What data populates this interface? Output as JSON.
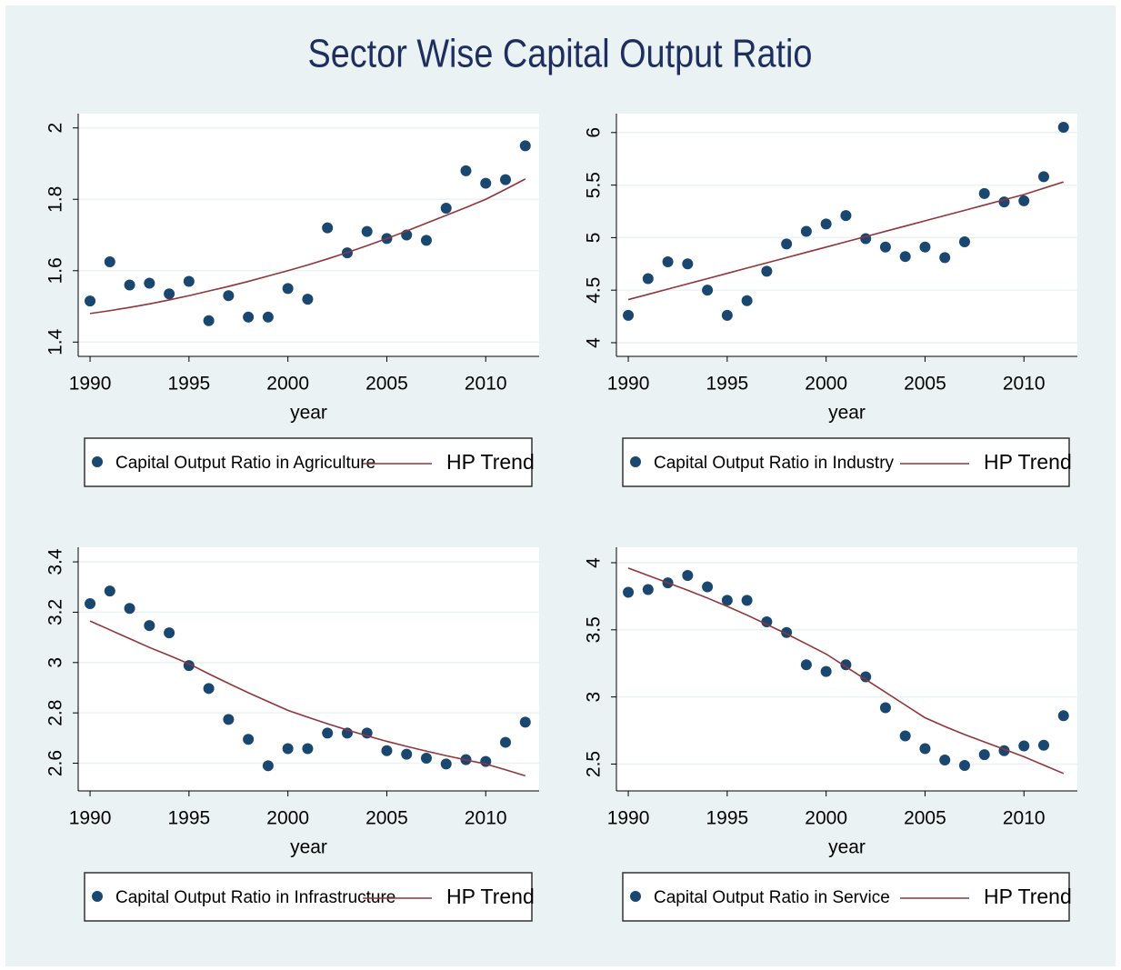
{
  "title": "Sector Wise Capital Output Ratio",
  "chart_data": [
    {
      "type": "scatter",
      "xlabel": "year",
      "x": [
        1990,
        1991,
        1992,
        1993,
        1994,
        1995,
        1996,
        1997,
        1998,
        1999,
        2000,
        2001,
        2002,
        2003,
        2004,
        2005,
        2006,
        2007,
        2008,
        2009,
        2010,
        2011,
        2012
      ],
      "series": [
        {
          "name": "Capital Output Ratio in Agriculture",
          "type": "scatter",
          "color": "#1a476f",
          "values": [
            1.515,
            1.625,
            1.56,
            1.565,
            1.535,
            1.57,
            1.46,
            1.53,
            1.47,
            1.47,
            1.55,
            1.52,
            1.72,
            1.65,
            1.71,
            1.69,
            1.7,
            1.685,
            1.775,
            1.88,
            1.845,
            1.855,
            1.95
          ]
        },
        {
          "name": "HP Trend",
          "type": "line",
          "color": "#90353b",
          "values": [
            1.48,
            1.488,
            1.497,
            1.507,
            1.518,
            1.53,
            1.543,
            1.556,
            1.57,
            1.585,
            1.6,
            1.616,
            1.633,
            1.651,
            1.67,
            1.69,
            1.711,
            1.733,
            1.755,
            1.777,
            1.8,
            1.828,
            1.857
          ]
        }
      ],
      "xlim": [
        1989.4,
        2012.7
      ],
      "xticks": [
        1990,
        1995,
        2000,
        2005,
        2010
      ],
      "ylim": [
        1.36,
        2.04
      ],
      "yticks": [
        1.4,
        1.6,
        1.8,
        2
      ],
      "grid": true,
      "legend": "bottom"
    },
    {
      "type": "scatter",
      "xlabel": "year",
      "x": [
        1990,
        1991,
        1992,
        1993,
        1994,
        1995,
        1996,
        1997,
        1998,
        1999,
        2000,
        2001,
        2002,
        2003,
        2004,
        2005,
        2006,
        2007,
        2008,
        2009,
        2010,
        2011,
        2012
      ],
      "series": [
        {
          "name": "Capital Output Ratio in Industry",
          "type": "scatter",
          "color": "#1a476f",
          "values": [
            4.26,
            4.61,
            4.77,
            4.75,
            4.5,
            4.26,
            4.4,
            4.68,
            4.94,
            5.06,
            5.13,
            5.21,
            4.99,
            4.91,
            4.82,
            4.91,
            4.81,
            4.96,
            5.42,
            5.34,
            5.35,
            5.58,
            6.05
          ]
        },
        {
          "name": "HP Trend",
          "type": "line",
          "color": "#90353b",
          "values": [
            4.41,
            4.46,
            4.51,
            4.56,
            4.61,
            4.66,
            4.71,
            4.76,
            4.81,
            4.86,
            4.91,
            4.96,
            5.01,
            5.06,
            5.11,
            5.16,
            5.21,
            5.26,
            5.31,
            5.36,
            5.41,
            5.47,
            5.53
          ]
        }
      ],
      "xlim": [
        1989.4,
        2012.7
      ],
      "xticks": [
        1990,
        1995,
        2000,
        2005,
        2010
      ],
      "ylim": [
        3.87,
        6.18
      ],
      "yticks": [
        4,
        4.5,
        5,
        5.5,
        6
      ],
      "grid": true,
      "legend": "bottom"
    },
    {
      "type": "scatter",
      "xlabel": "year",
      "x": [
        1990,
        1991,
        1992,
        1993,
        1994,
        1995,
        1996,
        1997,
        1998,
        1999,
        2000,
        2001,
        2002,
        2003,
        2004,
        2005,
        2006,
        2007,
        2008,
        2009,
        2010,
        2011,
        2012
      ],
      "series": [
        {
          "name": "Capital Output Ratio in Infrastructure",
          "type": "scatter",
          "color": "#1a476f",
          "values": [
            3.234,
            3.284,
            3.215,
            3.147,
            3.118,
            2.988,
            2.897,
            2.774,
            2.695,
            2.59,
            2.658,
            2.658,
            2.72,
            2.72,
            2.72,
            2.65,
            2.636,
            2.62,
            2.597,
            2.614,
            2.607,
            2.683,
            2.763
          ]
        },
        {
          "name": "HP Trend",
          "type": "line",
          "color": "#90353b",
          "values": [
            3.165,
            3.13,
            3.095,
            3.06,
            3.028,
            2.995,
            2.955,
            2.917,
            2.88,
            2.845,
            2.81,
            2.783,
            2.757,
            2.732,
            2.709,
            2.687,
            2.667,
            2.648,
            2.63,
            2.613,
            2.597,
            2.574,
            2.55
          ]
        }
      ],
      "xlim": [
        1989.4,
        2012.7
      ],
      "xticks": [
        1990,
        1995,
        2000,
        2005,
        2010
      ],
      "ylim": [
        2.49,
        3.458
      ],
      "yticks": [
        2.6,
        2.8,
        3,
        3.2,
        3.4
      ],
      "grid": true,
      "legend": "bottom"
    },
    {
      "type": "scatter",
      "xlabel": "year",
      "x": [
        1990,
        1991,
        1992,
        1993,
        1994,
        1995,
        1996,
        1997,
        1998,
        1999,
        2000,
        2001,
        2002,
        2003,
        2004,
        2005,
        2006,
        2007,
        2008,
        2009,
        2010,
        2011,
        2012
      ],
      "series": [
        {
          "name": "Capital Output Ratio in Service",
          "type": "scatter",
          "color": "#1a476f",
          "values": [
            3.78,
            3.8,
            3.85,
            3.905,
            3.82,
            3.72,
            3.72,
            3.56,
            3.48,
            3.24,
            3.19,
            3.24,
            3.15,
            2.92,
            2.71,
            2.615,
            2.53,
            2.49,
            2.57,
            2.6,
            2.635,
            2.64,
            2.86
          ]
        },
        {
          "name": "HP Trend",
          "type": "line",
          "color": "#90353b",
          "values": [
            3.96,
            3.905,
            3.85,
            3.795,
            3.737,
            3.675,
            3.61,
            3.54,
            3.47,
            3.395,
            3.32,
            3.225,
            3.13,
            3.035,
            2.94,
            2.845,
            2.78,
            2.72,
            2.665,
            2.61,
            2.555,
            2.492,
            2.43
          ]
        }
      ],
      "xlim": [
        1989.4,
        2012.7
      ],
      "xticks": [
        1990,
        1995,
        2000,
        2005,
        2010
      ],
      "ylim": [
        2.3,
        4.115
      ],
      "yticks": [
        2.5,
        3,
        3.5,
        4
      ],
      "grid": true,
      "legend": "bottom"
    }
  ]
}
